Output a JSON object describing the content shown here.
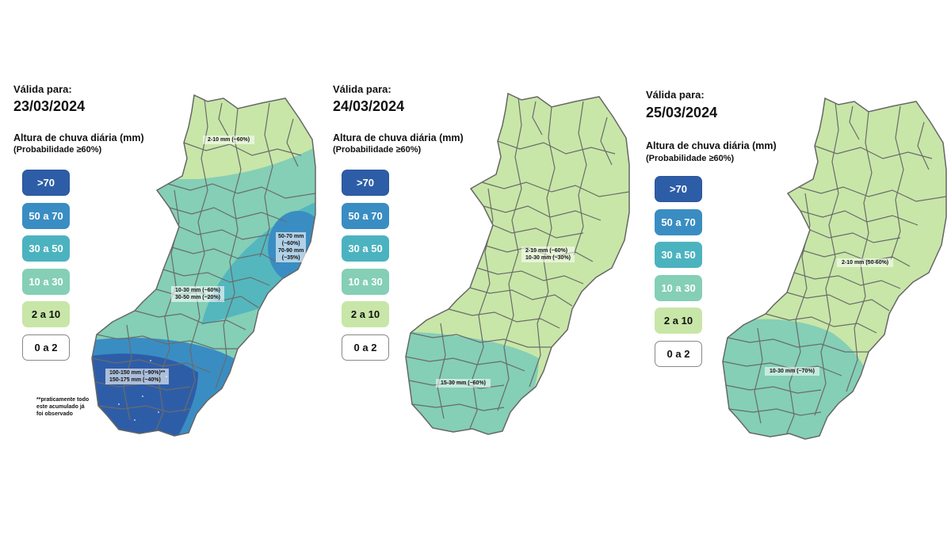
{
  "colors": {
    "gt70": "#2e5da8",
    "c50_70": "#3a8dc2",
    "c30_50": "#4bb3bf",
    "c10_30": "#84cfb6",
    "c2_10": "#c8e6a8",
    "c0_2": "#ffffff",
    "border": "#666666"
  },
  "panels": [
    {
      "valid_label": "Válida para:",
      "date": "23/03/2024",
      "title": "Altura de chuva diária (mm)",
      "subtitle": "(Probabilidade ≥60%)",
      "legend": [
        ">70",
        "50 a 70",
        "30 a 50",
        "10 a 30",
        "2 a 10",
        "0 a 2"
      ],
      "notes": [
        {
          "lines": [
            "2-10 mm (~60%)"
          ]
        },
        {
          "lines": [
            "50-70 mm",
            "(~60%)",
            "70-90 mm",
            "(~35%)"
          ]
        },
        {
          "lines": [
            "10-30 mm (~60%)",
            "30-50 mm (~20%)"
          ]
        },
        {
          "lines": [
            "100-150 mm (~90%)**",
            "150-175 mm (~40%)"
          ]
        }
      ],
      "footnote": [
        "**praticamente todo",
        "este acumulado já",
        "foi observado"
      ]
    },
    {
      "valid_label": "Válida para:",
      "date": "24/03/2024",
      "title": "Altura de chuva diária (mm)",
      "subtitle": "(Probabilidade ≥60%)",
      "legend": [
        ">70",
        "50 a 70",
        "30 a 50",
        "10 a 30",
        "2 a 10",
        "0 a 2"
      ],
      "notes": [
        {
          "lines": [
            "2-10 mm (~60%)",
            "10-30 mm (~30%)"
          ]
        },
        {
          "lines": [
            "15-30 mm (~60%)"
          ]
        }
      ]
    },
    {
      "valid_label": "Válida para:",
      "date": "25/03/2024",
      "title": "Altura de chuva diária (mm)",
      "subtitle": "(Probabilidade ≥60%)",
      "legend": [
        ">70",
        "50 a 70",
        "30 a 50",
        "10 a 30",
        "2 a 10",
        "0 a 2"
      ],
      "notes": [
        {
          "lines": [
            "2-10 mm (50-60%)"
          ]
        },
        {
          "lines": [
            "10-30 mm (~70%)"
          ]
        }
      ]
    }
  ]
}
